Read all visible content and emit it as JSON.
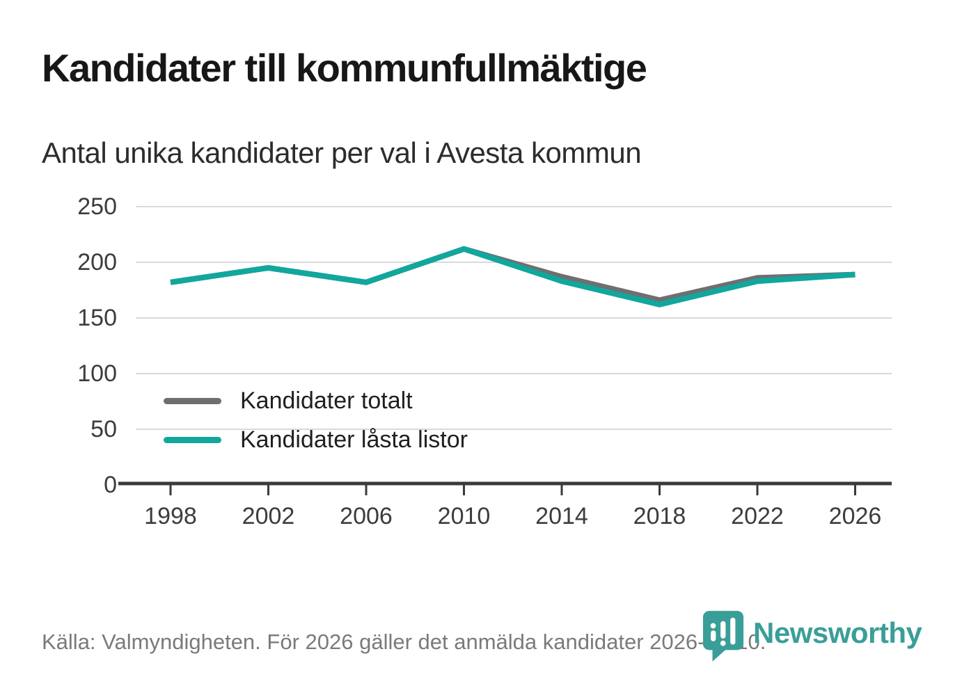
{
  "header": {
    "title": "Kandidater till kommunfullmäktige",
    "subtitle": "Antal unika kandidater per val i Avesta kommun"
  },
  "chart_data": {
    "type": "line",
    "title": "Kandidater till kommunfullmäktige",
    "subtitle": "Antal unika kandidater per val i Avesta kommun",
    "x": [
      1998,
      2002,
      2006,
      2010,
      2014,
      2018,
      2022,
      2026
    ],
    "series": [
      {
        "name": "Kandidater totalt",
        "color": "#6f6f6f",
        "values": [
          182,
          195,
          182,
          212,
          187,
          166,
          186,
          189
        ]
      },
      {
        "name": "Kandidater låsta listor",
        "color": "#11a79c",
        "values": [
          182,
          195,
          182,
          212,
          183,
          162,
          183,
          189
        ]
      }
    ],
    "ylim": [
      0,
      250
    ],
    "yticks": [
      0,
      50,
      100,
      150,
      200,
      250
    ],
    "grid": "horizontal-only",
    "legend_position": "inside bottom-left"
  },
  "footer": {
    "source_note": "Källa: Valmyndigheten. För 2026 gäller det anmälda kandidater 2026-04-10."
  },
  "branding": {
    "name": "Newsworthy",
    "color": "#3a9e98"
  },
  "style": {
    "grid_color": "#d9d9d9",
    "axis_color": "#3a3a3a",
    "tick_label_color": "#3c3c3c",
    "title_color": "#171717",
    "subtitle_color": "#2c2c2c",
    "legend_text_color": "#1f1f1f",
    "footer_color": "#7a7a7a"
  }
}
